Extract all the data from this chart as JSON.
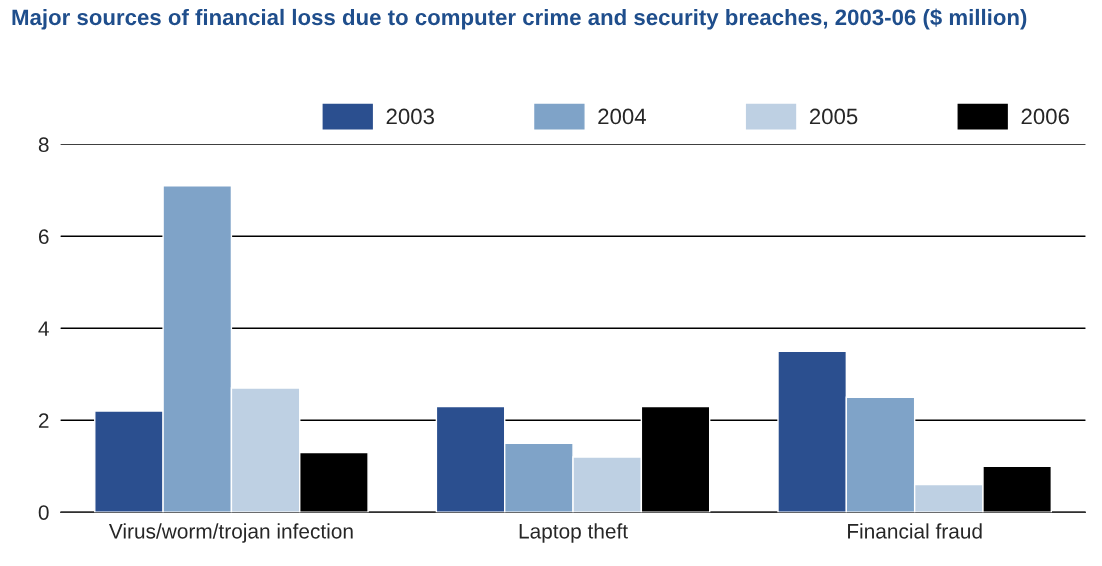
{
  "chart_data": {
    "type": "bar",
    "title": "Major sources of financial loss due to computer crime and security breaches, 2003-06 ($ million)",
    "categories": [
      "Virus/worm/trojan infection",
      "Laptop theft",
      "Financial fraud"
    ],
    "series": [
      {
        "name": "2003",
        "color": "#2b4f8f",
        "values": [
          2.2,
          2.3,
          3.5
        ]
      },
      {
        "name": "2004",
        "color": "#7fa3c8",
        "values": [
          7.1,
          1.5,
          2.5
        ]
      },
      {
        "name": "2005",
        "color": "#bed0e3",
        "values": [
          2.7,
          1.2,
          0.6
        ]
      },
      {
        "name": "2006",
        "color": "#000000",
        "values": [
          1.3,
          2.3,
          1.0
        ]
      }
    ],
    "ylim": [
      0,
      8
    ],
    "yticks": [
      0,
      2,
      4,
      6,
      8
    ],
    "grid": "y",
    "legend": "top right"
  }
}
